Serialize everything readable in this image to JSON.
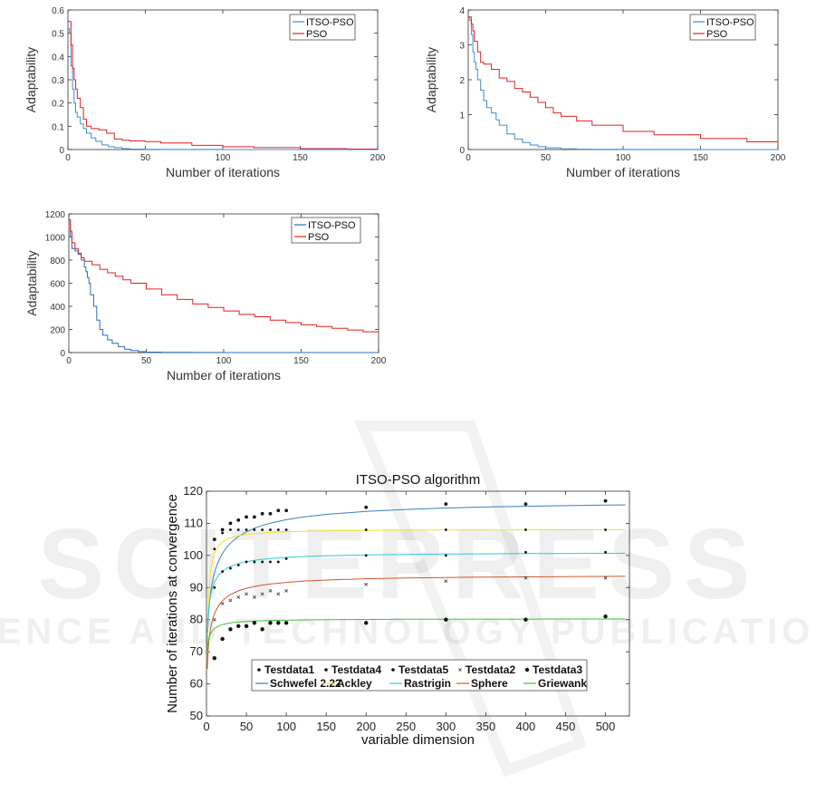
{
  "watermark": {
    "line1": "SCITEPRESS",
    "line2": "SCIENCE AND TECHNOLOGY PUBLICATIONS"
  },
  "chart_data": [
    {
      "type": "line",
      "title": "",
      "xlabel": "Number of iterations",
      "ylabel": "Adaptability",
      "xlim": [
        0,
        200
      ],
      "ylim": [
        0,
        0.6
      ],
      "xticks": [
        0,
        50,
        100,
        150,
        200
      ],
      "yticks": [
        0,
        0.1,
        0.2,
        0.3,
        0.4,
        0.5,
        0.6
      ],
      "legend": "top-right",
      "grid": false,
      "series": [
        {
          "name": "ITSO-PSO",
          "color": "#3d8fd0",
          "x": [
            0,
            1,
            2,
            3,
            4,
            5,
            6,
            8,
            10,
            12,
            15,
            18,
            22,
            26,
            30,
            35,
            40,
            50,
            60,
            80,
            100,
            150,
            200
          ],
          "y": [
            0.52,
            0.5,
            0.36,
            0.26,
            0.2,
            0.16,
            0.14,
            0.11,
            0.09,
            0.07,
            0.05,
            0.035,
            0.02,
            0.012,
            0.008,
            0.004,
            0.002,
            0.001,
            0.0005,
            0.0002,
            0.0001,
            0.0,
            0.0
          ]
        },
        {
          "name": "PSO",
          "color": "#e0201f",
          "x": [
            0,
            1,
            2,
            3,
            4,
            5,
            6,
            8,
            10,
            12,
            15,
            20,
            25,
            30,
            35,
            40,
            50,
            60,
            80,
            100,
            120,
            150,
            180,
            200
          ],
          "y": [
            0.55,
            0.55,
            0.45,
            0.35,
            0.3,
            0.26,
            0.22,
            0.18,
            0.13,
            0.1,
            0.09,
            0.085,
            0.07,
            0.045,
            0.04,
            0.037,
            0.034,
            0.028,
            0.018,
            0.012,
            0.008,
            0.004,
            0.002,
            0.001
          ]
        }
      ]
    },
    {
      "type": "line",
      "title": "",
      "xlabel": "Number of iterations",
      "ylabel": "Adaptability",
      "xlim": [
        0,
        200
      ],
      "ylim": [
        0,
        4
      ],
      "xticks": [
        0,
        50,
        100,
        150,
        200
      ],
      "yticks": [
        0,
        1,
        2,
        3,
        4
      ],
      "legend": "top-right",
      "grid": false,
      "series": [
        {
          "name": "ITSO-PSO",
          "color": "#3d8fd0",
          "x": [
            0,
            1,
            2,
            3,
            4,
            5,
            6,
            8,
            10,
            12,
            15,
            18,
            20,
            25,
            30,
            35,
            40,
            45,
            50,
            60,
            70,
            80,
            100,
            150,
            200
          ],
          "y": [
            3.8,
            3.7,
            3.3,
            2.8,
            2.5,
            2.3,
            2.0,
            1.7,
            1.4,
            1.2,
            1.05,
            0.85,
            0.7,
            0.45,
            0.3,
            0.2,
            0.13,
            0.08,
            0.05,
            0.02,
            0.01,
            0.005,
            0.002,
            0.0,
            0.0
          ]
        },
        {
          "name": "PSO",
          "color": "#e0201f",
          "x": [
            0,
            1,
            2,
            3,
            4,
            6,
            8,
            10,
            15,
            20,
            25,
            30,
            35,
            40,
            45,
            50,
            55,
            60,
            70,
            80,
            100,
            120,
            150,
            180,
            200
          ],
          "y": [
            3.8,
            3.8,
            3.6,
            3.4,
            3.1,
            2.8,
            2.5,
            2.45,
            2.3,
            2.05,
            1.95,
            1.75,
            1.65,
            1.5,
            1.35,
            1.2,
            1.05,
            0.95,
            0.82,
            0.7,
            0.52,
            0.42,
            0.32,
            0.22,
            0.15
          ]
        }
      ]
    },
    {
      "type": "line",
      "title": "",
      "xlabel": "Number of iterations",
      "ylabel": "Adaptability",
      "xlim": [
        0,
        200
      ],
      "ylim": [
        0,
        1200
      ],
      "xticks": [
        0,
        50,
        100,
        150,
        200
      ],
      "yticks": [
        0,
        200,
        400,
        600,
        800,
        1000,
        1200
      ],
      "legend": "top-right",
      "grid": false,
      "series": [
        {
          "name": "ITSO-PSO",
          "color": "#2a6fc0",
          "x": [
            0,
            1,
            2,
            4,
            6,
            8,
            10,
            11,
            12,
            13,
            14,
            16,
            18,
            20,
            22,
            25,
            28,
            32,
            36,
            40,
            45,
            50,
            60,
            80,
            100,
            150,
            200
          ],
          "y": [
            1150,
            1000,
            900,
            880,
            850,
            800,
            740,
            700,
            650,
            600,
            500,
            400,
            280,
            200,
            150,
            110,
            80,
            50,
            30,
            18,
            8,
            4,
            2,
            1,
            0,
            0,
            0
          ]
        },
        {
          "name": "PSO",
          "color": "#e0201f",
          "x": [
            0,
            1,
            2,
            4,
            6,
            8,
            10,
            15,
            20,
            25,
            30,
            35,
            40,
            50,
            60,
            70,
            80,
            90,
            100,
            110,
            120,
            130,
            140,
            150,
            160,
            170,
            180,
            190,
            200
          ],
          "y": [
            1150,
            1050,
            950,
            900,
            860,
            820,
            790,
            760,
            720,
            690,
            660,
            630,
            600,
            550,
            500,
            460,
            420,
            390,
            360,
            330,
            310,
            280,
            260,
            240,
            225,
            210,
            195,
            180,
            170
          ]
        }
      ]
    },
    {
      "type": "scatter",
      "title": "ITSO-PSO algorithm",
      "xlabel": "variable dimension",
      "ylabel": "Number of iterations at convergence",
      "xlim": [
        0,
        530
      ],
      "ylim": [
        50,
        120
      ],
      "xticks": [
        0,
        50,
        100,
        150,
        200,
        250,
        300,
        350,
        400,
        450,
        500
      ],
      "yticks": [
        50,
        60,
        70,
        80,
        90,
        100,
        110,
        120
      ],
      "legend": "lower-center",
      "grid": false,
      "x": [
        10,
        20,
        30,
        40,
        50,
        60,
        70,
        80,
        90,
        100,
        200,
        300,
        400,
        500
      ],
      "points": [
        {
          "name": "Testdata1",
          "marker": "dot",
          "y": [
            105,
            108,
            110,
            111,
            112,
            112,
            113,
            113,
            114,
            114,
            115,
            116,
            116,
            117
          ]
        },
        {
          "name": "Testdata4",
          "marker": "dot-small",
          "y": [
            102,
            107,
            108,
            108,
            108,
            108,
            108,
            108,
            108,
            108,
            108,
            108,
            108,
            108
          ]
        },
        {
          "name": "Testdata5",
          "marker": "dot-small",
          "y": [
            90,
            95,
            96,
            97,
            98,
            98,
            98,
            98,
            98,
            99,
            100,
            100,
            101,
            101
          ]
        },
        {
          "name": "Testdata2",
          "marker": "x",
          "y": [
            80,
            85,
            86,
            87,
            88,
            87,
            88,
            89,
            88,
            89,
            91,
            92,
            93,
            93
          ]
        },
        {
          "name": "Testdata3",
          "marker": "dot-large",
          "y": [
            68,
            74,
            77,
            78,
            78,
            79,
            77,
            79,
            79,
            79,
            79,
            80,
            80,
            81
          ]
        }
      ],
      "fits": [
        {
          "name": "Schwefel 2.22",
          "color": "#3a7fc0",
          "asym": 117.2,
          "amp": 10.3,
          "k": 0.0125
        },
        {
          "name": "Ackley",
          "color": "#f2e030",
          "asym": 108.2,
          "amp": 30,
          "k": 0.35
        },
        {
          "name": "Rastrigin",
          "color": "#30c8d8",
          "asym": 101.0,
          "amp": 8.0,
          "k": 0.045
        },
        {
          "name": "Sphere",
          "color": "#d2562a",
          "asym": 94.0,
          "amp": 8.3,
          "k": 0.03
        },
        {
          "name": "Griewank",
          "color": "#40c040",
          "asym": 80.3,
          "amp": 3.8,
          "k": 0.08
        }
      ],
      "fit_x": [
        1,
        2,
        3,
        4,
        5,
        6,
        8,
        10,
        13,
        16,
        20,
        25,
        30,
        40,
        50,
        60,
        70,
        80,
        100,
        120,
        150,
        200,
        250,
        300,
        350,
        400,
        450,
        500,
        525
      ]
    }
  ]
}
